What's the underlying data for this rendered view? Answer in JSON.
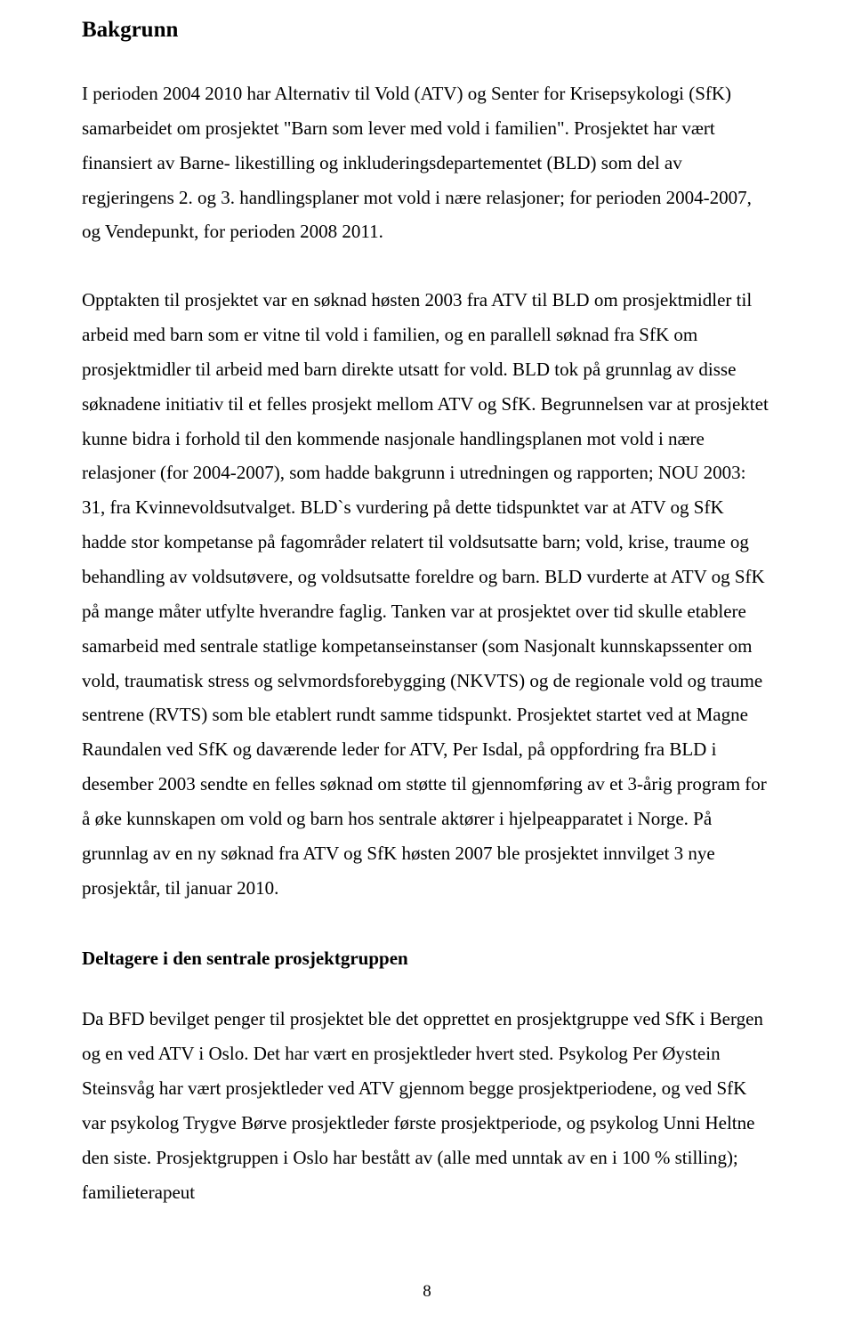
{
  "heading": "Bakgrunn",
  "para1": "I perioden 2004 2010 har Alternativ til Vold (ATV) og Senter for Krisepsykologi (SfK) samarbeidet om prosjektet \"Barn som lever med vold i familien\". Prosjektet har vært finansiert av Barne- likestilling og inkluderingsdepartementet (BLD) som del av regjeringens 2. og 3. handlingsplaner mot vold i nære relasjoner; for perioden 2004-2007, og Vendepunkt, for perioden 2008 2011.",
  "para2": "Opptakten til prosjektet var en søknad høsten 2003 fra ATV til BLD om prosjektmidler til arbeid med barn som er vitne til vold i familien, og en parallell søknad fra SfK om prosjektmidler til arbeid med barn direkte utsatt for vold. BLD tok på grunnlag av disse søknadene initiativ til et felles prosjekt mellom ATV og SfK. Begrunnelsen var at prosjektet kunne bidra i forhold til den kommende nasjonale handlingsplanen mot vold i nære relasjoner (for 2004-2007), som hadde bakgrunn i utredningen og rapporten; NOU 2003: 31, fra Kvinnevoldsutvalget. BLD`s vurdering på dette tidspunktet var at ATV og SfK hadde stor kompetanse på fagområder relatert til voldsutsatte barn; vold, krise, traume og behandling av voldsutøvere, og voldsutsatte foreldre og barn.  BLD vurderte at ATV og SfK på mange måter utfylte hverandre faglig. Tanken var at prosjektet over tid skulle etablere samarbeid med sentrale statlige kompetanseinstanser (som Nasjonalt kunnskapssenter om vold, traumatisk stress og selvmordsforebygging (NKVTS) og de regionale vold og traume sentrene (RVTS) som ble etablert rundt samme tidspunkt. Prosjektet startet ved at Magne Raundalen ved SfK og daværende leder for ATV, Per Isdal, på oppfordring fra BLD i desember 2003 sendte en felles søknad om støtte til gjennomføring av et 3-årig program for å øke kunnskapen om vold og barn hos sentrale aktører i hjelpeapparatet i Norge. På grunnlag av en ny søknad fra ATV og SfK høsten 2007 ble prosjektet innvilget 3 nye prosjektår, til januar 2010.",
  "subheading": "Deltagere i den sentrale prosjektgruppen",
  "para3": "Da BFD bevilget penger til prosjektet ble det opprettet en prosjektgruppe ved SfK i Bergen og en ved ATV i Oslo.  Det har vært en prosjektleder hvert sted. Psykolog Per Øystein Steinsvåg har vært prosjektleder ved ATV gjennom begge prosjektperiodene, og ved SfK var psykolog Trygve Børve prosjektleder første prosjektperiode, og psykolog Unni Heltne den siste. Prosjektgruppen i Oslo har bestått av (alle med unntak av en i 100 % stilling); familieterapeut",
  "page_number": "8"
}
